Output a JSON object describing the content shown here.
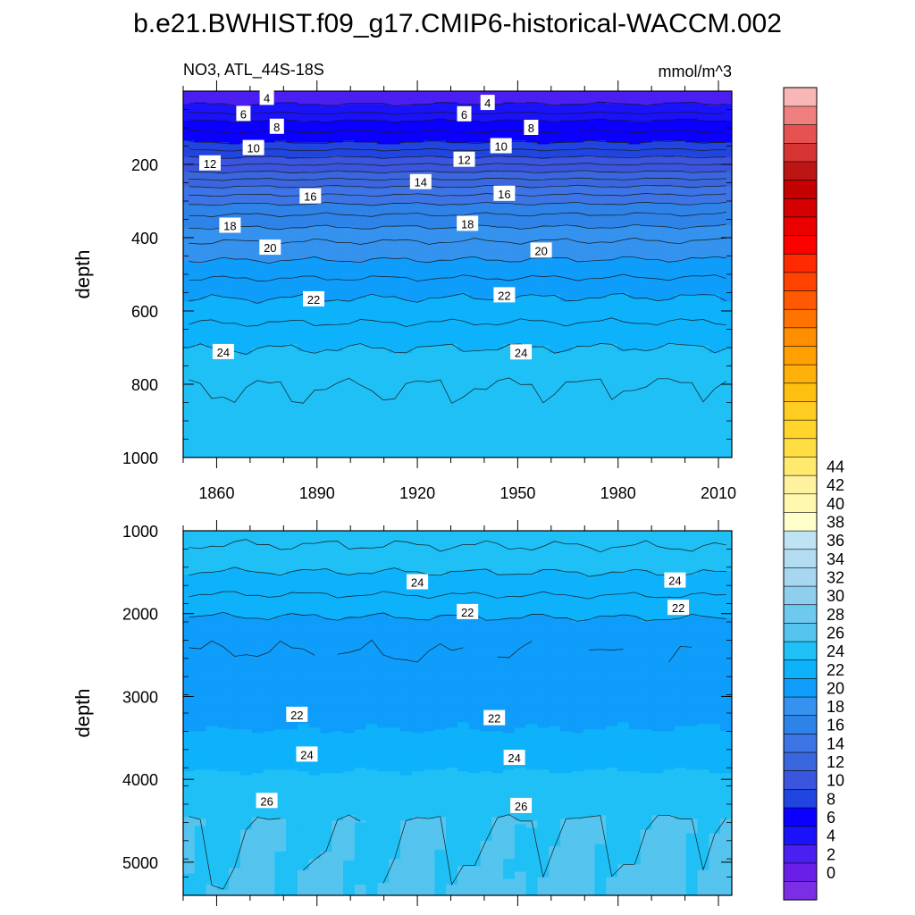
{
  "chart_data": {
    "type": "heatmap",
    "title": "b.e21.BWHIST.f09_g17.CMIP6-historical-WACCM.002",
    "left_subtitle": "NO3, ATL_44S-18S",
    "right_subtitle": "mmol/m^3",
    "colorbar": {
      "levels": [
        0,
        2,
        4,
        6,
        8,
        10,
        12,
        14,
        16,
        18,
        20,
        22,
        24,
        26,
        28,
        30,
        32,
        34,
        36,
        38,
        40,
        42,
        44
      ],
      "colors": [
        "#7b2ee3",
        "#6a1fe8",
        "#4b1ef2",
        "#1a12fb",
        "#0b00ff",
        "#2145e0",
        "#3a55de",
        "#3a66de",
        "#3d74e6",
        "#2e83e8",
        "#3592ef",
        "#0f9dfb",
        "#0db2fb",
        "#1ec0f6",
        "#55c4ef",
        "#6dc9f0",
        "#8fcfee",
        "#a6d6f0",
        "#b3dbf1",
        "#c0e3f3",
        "#ffffcc",
        "#fff8ae",
        "#fff29e",
        "#ffe96f",
        "#ffde44",
        "#ffd52c",
        "#ffcd21",
        "#ffbf10",
        "#ffb009",
        "#ffa000",
        "#ff8e00",
        "#ff7300",
        "#ff5a00",
        "#ff4200",
        "#ff2a00",
        "#ff0000",
        "#eb0000",
        "#d50000",
        "#c40000",
        "#bd1414",
        "#d63333",
        "#e65252",
        "#f07f7f",
        "#f8b6b6"
      ],
      "tick_labels": [
        "0",
        "2",
        "4",
        "6",
        "8",
        "10",
        "12",
        "14",
        "16",
        "18",
        "20",
        "22",
        "24",
        "26",
        "28",
        "30",
        "32",
        "34",
        "36",
        "38",
        "40",
        "42",
        "44"
      ]
    },
    "x": {
      "ticks": [
        1860,
        1890,
        1920,
        1950,
        1980,
        2010
      ],
      "range": [
        1850,
        2014
      ]
    },
    "panels": [
      {
        "ylabel": "depth",
        "ylim": [
          1000,
          0
        ],
        "y_ticks": [
          200,
          400,
          600,
          800,
          1000
        ],
        "depths": [
          20,
          50,
          80,
          110,
          140,
          170,
          200,
          230,
          260,
          290,
          320,
          360,
          400,
          450,
          500,
          550,
          600,
          650,
          700,
          750,
          800,
          900,
          1000
        ],
        "values": [
          3.5,
          4.5,
          6,
          7,
          8,
          9.5,
          11,
          12.5,
          14,
          15.3,
          16.5,
          17.7,
          18.8,
          19.8,
          20.8,
          21.8,
          22.5,
          23.3,
          24,
          24.5,
          25,
          25.3,
          25.6
        ],
        "contour_labels": [
          {
            "text": "4",
            "year": 1875,
            "depth": 18
          },
          {
            "text": "6",
            "year": 1868,
            "depth": 62
          },
          {
            "text": "8",
            "year": 1878,
            "depth": 97
          },
          {
            "text": "10",
            "year": 1871,
            "depth": 155
          },
          {
            "text": "12",
            "year": 1858,
            "depth": 197
          },
          {
            "text": "14",
            "year": 1921,
            "depth": 248
          },
          {
            "text": "16",
            "year": 1888,
            "depth": 287
          },
          {
            "text": "18",
            "year": 1864,
            "depth": 367
          },
          {
            "text": "20",
            "year": 1876,
            "depth": 427
          },
          {
            "text": "22",
            "year": 1889,
            "depth": 568
          },
          {
            "text": "24",
            "year": 1862,
            "depth": 712
          },
          {
            "text": "4",
            "year": 1941,
            "depth": 32
          },
          {
            "text": "6",
            "year": 1934,
            "depth": 63
          },
          {
            "text": "8",
            "year": 1954,
            "depth": 100
          },
          {
            "text": "10",
            "year": 1945,
            "depth": 150
          },
          {
            "text": "12",
            "year": 1934,
            "depth": 187
          },
          {
            "text": "16",
            "year": 1946,
            "depth": 280
          },
          {
            "text": "18",
            "year": 1935,
            "depth": 362
          },
          {
            "text": "20",
            "year": 1957,
            "depth": 435
          },
          {
            "text": "22",
            "year": 1946,
            "depth": 557
          },
          {
            "text": "24",
            "year": 1951,
            "depth": 713
          }
        ]
      },
      {
        "ylabel": "depth",
        "ylim": [
          5400,
          1000
        ],
        "y_ticks": [
          1000,
          2000,
          3000,
          4000,
          5000
        ],
        "depths": [
          1100,
          1300,
          1500,
          1700,
          1900,
          2100,
          2300,
          2600,
          3000,
          3400,
          3600,
          3800,
          4000,
          4200,
          4500,
          5000,
          5300
        ],
        "values": [
          25.2,
          24.7,
          24,
          23.3,
          22.5,
          21.8,
          21.2,
          20.9,
          21.2,
          22,
          22.8,
          23.6,
          24.4,
          25.3,
          26,
          26,
          26.1
        ],
        "contour_labels": [
          {
            "text": "24",
            "year": 1920,
            "depth": 1620
          },
          {
            "text": "22",
            "year": 1935,
            "depth": 1980
          },
          {
            "text": "24",
            "year": 1997,
            "depth": 1600
          },
          {
            "text": "22",
            "year": 1998,
            "depth": 1930
          },
          {
            "text": "22",
            "year": 1884,
            "depth": 3220
          },
          {
            "text": "22",
            "year": 1943,
            "depth": 3260
          },
          {
            "text": "24",
            "year": 1887,
            "depth": 3700
          },
          {
            "text": "24",
            "year": 1949,
            "depth": 3740
          },
          {
            "text": "26",
            "year": 1875,
            "depth": 4260
          },
          {
            "text": "26",
            "year": 1951,
            "depth": 4320
          }
        ]
      }
    ]
  }
}
